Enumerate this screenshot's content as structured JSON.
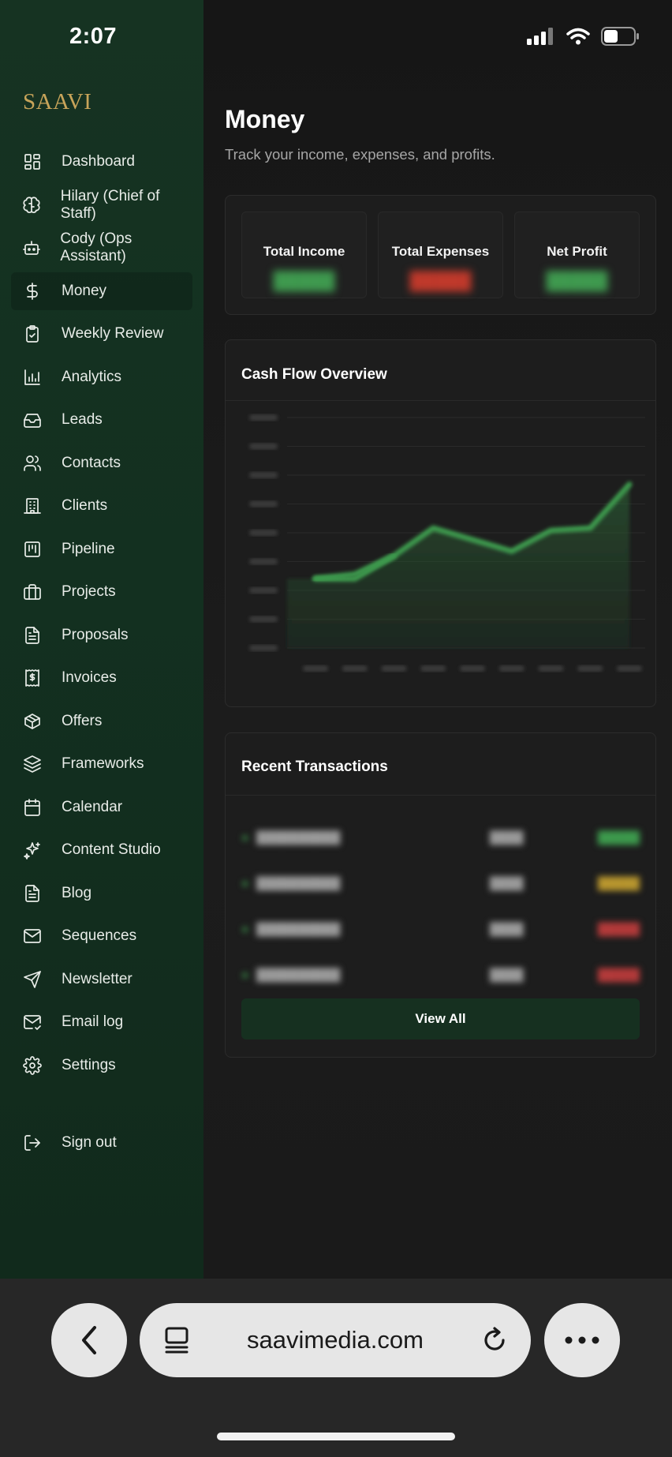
{
  "status_bar": {
    "time": "2:07"
  },
  "brand": "SAAVI",
  "sidebar": {
    "items": [
      {
        "label": "Dashboard",
        "icon": "grid-icon"
      },
      {
        "label": "Hilary (Chief of Staff)",
        "icon": "brain-icon"
      },
      {
        "label": "Cody (Ops Assistant)",
        "icon": "bot-icon"
      },
      {
        "label": "Money",
        "icon": "dollar-icon",
        "active": true
      },
      {
        "label": "Weekly Review",
        "icon": "clipboard-check-icon"
      },
      {
        "label": "Analytics",
        "icon": "bar-chart-icon"
      },
      {
        "label": "Leads",
        "icon": "inbox-icon"
      },
      {
        "label": "Contacts",
        "icon": "users-icon"
      },
      {
        "label": "Clients",
        "icon": "building-icon"
      },
      {
        "label": "Pipeline",
        "icon": "kanban-icon"
      },
      {
        "label": "Projects",
        "icon": "briefcase-icon"
      },
      {
        "label": "Proposals",
        "icon": "file-text-icon"
      },
      {
        "label": "Invoices",
        "icon": "receipt-icon"
      },
      {
        "label": "Offers",
        "icon": "package-icon"
      },
      {
        "label": "Frameworks",
        "icon": "layers-icon"
      },
      {
        "label": "Calendar",
        "icon": "calendar-icon"
      },
      {
        "label": "Content Studio",
        "icon": "sparkles-icon"
      },
      {
        "label": "Blog",
        "icon": "document-icon"
      },
      {
        "label": "Sequences",
        "icon": "mail-icon"
      },
      {
        "label": "Newsletter",
        "icon": "send-icon"
      },
      {
        "label": "Email log",
        "icon": "mail-check-icon"
      },
      {
        "label": "Settings",
        "icon": "gear-icon"
      }
    ],
    "sign_out": "Sign out"
  },
  "main": {
    "title": "Money",
    "subtitle": "Track your income, expenses, and profits.",
    "stats": [
      {
        "label": "Total Income",
        "color": "#3f9a4f"
      },
      {
        "label": "Total Expenses",
        "color": "#c0392b"
      },
      {
        "label": "Net Profit",
        "color": "#3f9a4f"
      }
    ],
    "chart_card": {
      "title": "Cash Flow Overview"
    },
    "transactions_card": {
      "title": "Recent Transactions",
      "view_all": "View All"
    }
  },
  "chart_data": {
    "type": "area",
    "title": "Cash Flow Overview",
    "line_color": "#3d9a4d",
    "grid": true,
    "series": [
      {
        "values": [
          0.3,
          0.3,
          0.4,
          0.52,
          0.47,
          0.42,
          0.51,
          0.52,
          0.71
        ]
      },
      {
        "values": [
          0.3,
          0.32,
          0.4
        ]
      }
    ]
  },
  "browser": {
    "url": "saavimedia.com"
  }
}
